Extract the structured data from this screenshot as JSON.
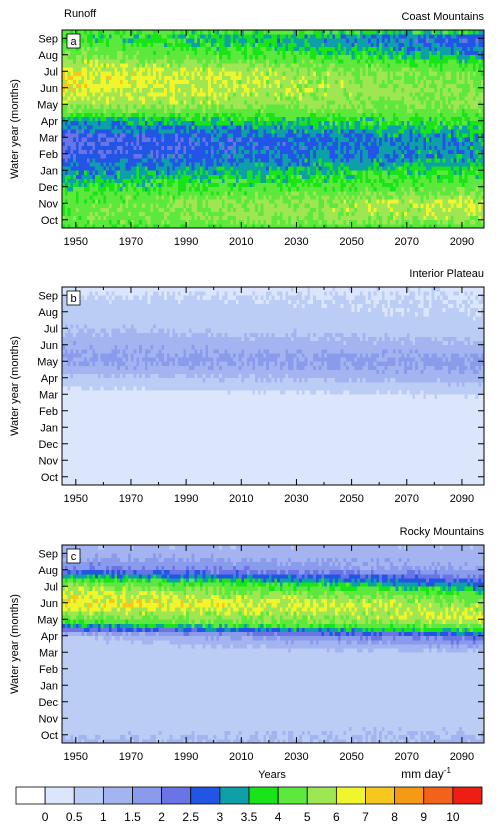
{
  "figure": {
    "top_label": "Runoff",
    "xlabel": "Years",
    "units": "mm day",
    "units_exponent": "-1"
  },
  "chart_data": [
    {
      "type": "heatmap",
      "panel": "a",
      "title": "Coast Mountains",
      "ylabel": "Water year (months)",
      "xlim": [
        1945,
        2098
      ],
      "x_ticks": [
        1950,
        1970,
        1990,
        2010,
        2030,
        2050,
        2070,
        2090
      ],
      "y_ticks": [
        "Oct",
        "Nov",
        "Dec",
        "Jan",
        "Feb",
        "Mar",
        "Apr",
        "May",
        "Jun",
        "Jul",
        "Aug",
        "Sep"
      ],
      "profile_start": [
        4.5,
        4.5,
        3.8,
        3.0,
        2.5,
        2.5,
        3.2,
        5.5,
        6.5,
        6.5,
        5.0,
        4.0
      ],
      "profile_end": [
        5.5,
        6.0,
        4.5,
        3.8,
        3.2,
        3.2,
        4.0,
        5.0,
        5.0,
        4.5,
        3.2,
        2.5
      ]
    },
    {
      "type": "heatmap",
      "panel": "b",
      "title": "Interior Plateau",
      "ylabel": "Water year (months)",
      "xlim": [
        1945,
        2098
      ],
      "x_ticks": [
        1950,
        1970,
        1990,
        2010,
        2030,
        2050,
        2070,
        2090
      ],
      "y_ticks": [
        "Oct",
        "Nov",
        "Dec",
        "Jan",
        "Feb",
        "Mar",
        "Apr",
        "May",
        "Jun",
        "Jul",
        "Aug",
        "Sep"
      ],
      "profile_start": [
        0.3,
        0.3,
        0.2,
        0.2,
        0.2,
        0.3,
        0.8,
        1.6,
        1.4,
        1.0,
        0.7,
        0.5
      ],
      "profile_end": [
        0.4,
        0.4,
        0.3,
        0.3,
        0.3,
        0.5,
        1.3,
        1.7,
        1.1,
        0.7,
        0.5,
        0.5
      ]
    },
    {
      "type": "heatmap",
      "panel": "c",
      "title": "Rocky Mountains",
      "ylabel": "Water year (months)",
      "xlim": [
        1945,
        2098
      ],
      "x_ticks": [
        1950,
        1970,
        1990,
        2010,
        2030,
        2050,
        2070,
        2090
      ],
      "y_ticks": [
        "Oct",
        "Nov",
        "Dec",
        "Jan",
        "Feb",
        "Mar",
        "Apr",
        "May",
        "Jun",
        "Jul",
        "Aug",
        "Sep"
      ],
      "profile_start": [
        0.9,
        0.7,
        0.6,
        0.6,
        0.6,
        0.6,
        0.9,
        4.5,
        7.0,
        5.5,
        2.2,
        1.3
      ],
      "profile_end": [
        1.0,
        0.8,
        0.7,
        0.7,
        0.7,
        0.9,
        2.5,
        6.0,
        5.5,
        3.0,
        1.5,
        1.2
      ]
    }
  ],
  "colorbar": {
    "labels": [
      "0",
      "0.5",
      "1",
      "1.5",
      "2",
      "2.5",
      "3",
      "3.5",
      "4",
      "5",
      "6",
      "7",
      "8",
      "9",
      "10"
    ],
    "thresholds": [
      0,
      0.5,
      1,
      1.5,
      2,
      2.5,
      3,
      3.5,
      4,
      5,
      6,
      7,
      8,
      9,
      10
    ],
    "colors": [
      "#ffffff",
      "#dbe5fb",
      "#bccdf5",
      "#a3b4f0",
      "#8a9bec",
      "#6b74e5",
      "#2255e6",
      "#0da0a8",
      "#19e418",
      "#5ce83c",
      "#9ee652",
      "#f0f52c",
      "#f6c81e",
      "#f49a14",
      "#f3621a",
      "#ee1e12"
    ]
  }
}
